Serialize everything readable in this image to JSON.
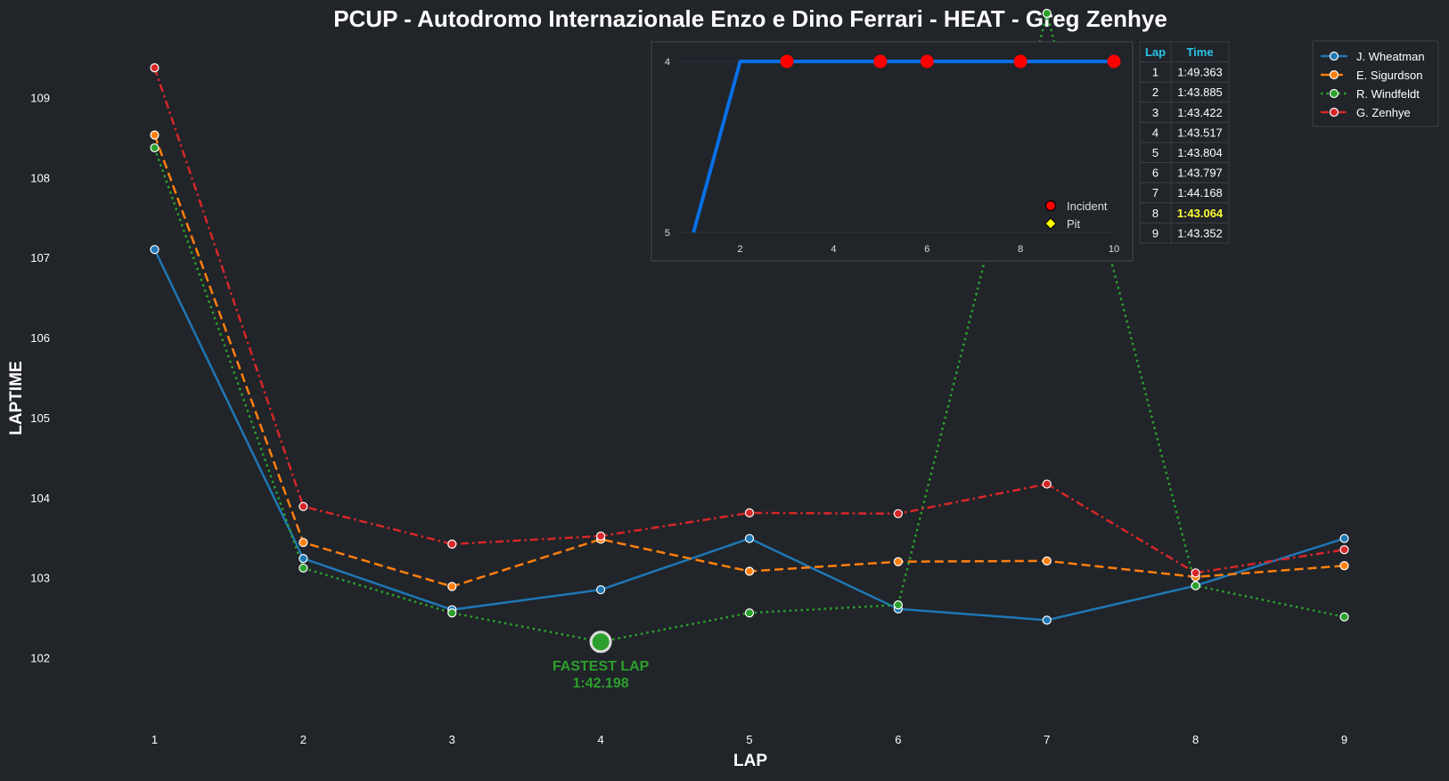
{
  "chart_data": {
    "type": "line",
    "title": "PCUP - Autodromo Internazionale Enzo e Dino Ferrari - HEAT - Greg Zenhye",
    "xlabel": "LAP",
    "ylabel": "LAPTIME",
    "x": [
      1,
      2,
      3,
      4,
      5,
      6,
      7,
      8,
      9
    ],
    "xlim": [
      0.35,
      9.65
    ],
    "ylim": [
      101.15,
      109.75
    ],
    "yticks": [
      102,
      103,
      104,
      105,
      106,
      107,
      108,
      109
    ],
    "grid": false,
    "legend_position": "top-right",
    "series": [
      {
        "name": "J. Wheatman",
        "color": "#1f77b4",
        "line_style": "solid",
        "values": [
          107.1,
          103.24,
          102.6,
          102.85,
          103.49,
          102.61,
          102.47,
          102.9,
          103.49
        ]
      },
      {
        "name": "E. Sigurdson",
        "color": "#ff7f0e",
        "line_style": "dashed",
        "values": [
          108.53,
          103.44,
          102.89,
          103.48,
          103.08,
          103.2,
          103.21,
          103.01,
          103.15
        ]
      },
      {
        "name": "R. Windfeldt",
        "color": "#2ca02c",
        "line_style": "dotted",
        "values": [
          108.37,
          103.12,
          102.56,
          102.2,
          102.56,
          102.66,
          110.05,
          102.9,
          102.51
        ]
      },
      {
        "name": "G. Zenhye",
        "color": "#d62728",
        "line_style": "dashdot",
        "values": [
          109.37,
          103.89,
          103.42,
          103.52,
          103.81,
          103.8,
          104.17,
          103.06,
          103.35
        ]
      }
    ],
    "annotation": {
      "x": 4,
      "y": 102.198,
      "label_line1": "FASTEST LAP",
      "label_line2": "1:42.198",
      "color": "#2ca02c"
    },
    "inset": {
      "type": "line",
      "x": [
        1,
        2,
        3,
        4,
        5,
        6,
        7,
        8,
        9,
        10
      ],
      "values": [
        5,
        4,
        4,
        4,
        4,
        4,
        4,
        4,
        4,
        4
      ],
      "xlim": [
        0.1,
        10.4
      ],
      "ylim": [
        4.0,
        5.0
      ],
      "xticks": [
        2,
        4,
        6,
        8,
        10
      ],
      "yticks": [
        4,
        5
      ],
      "y_inverted": true,
      "line_color": "#0a6fe6",
      "incident_laps": [
        3,
        5,
        6,
        8,
        10
      ],
      "pit_laps": [],
      "legend": [
        {
          "label": "Incident",
          "color": "#ff0000",
          "marker": "circle"
        },
        {
          "label": "Pit",
          "color": "#ffff00",
          "marker": "diamond"
        }
      ]
    },
    "table": {
      "headers": [
        "Lap",
        "Time"
      ],
      "rows": [
        [
          "1",
          "1:49.363"
        ],
        [
          "2",
          "1:43.885"
        ],
        [
          "3",
          "1:43.422"
        ],
        [
          "4",
          "1:43.517"
        ],
        [
          "5",
          "1:43.804"
        ],
        [
          "6",
          "1:43.797"
        ],
        [
          "7",
          "1:44.168"
        ],
        [
          "8",
          "1:43.064"
        ],
        [
          "9",
          "1:43.352"
        ]
      ],
      "best_row": 7
    }
  },
  "colors": {
    "background": "#212429",
    "text": "#ffffff",
    "table_header": "#29c4e8",
    "best_lap": "#ffff33",
    "frame": "#3a3d43"
  }
}
